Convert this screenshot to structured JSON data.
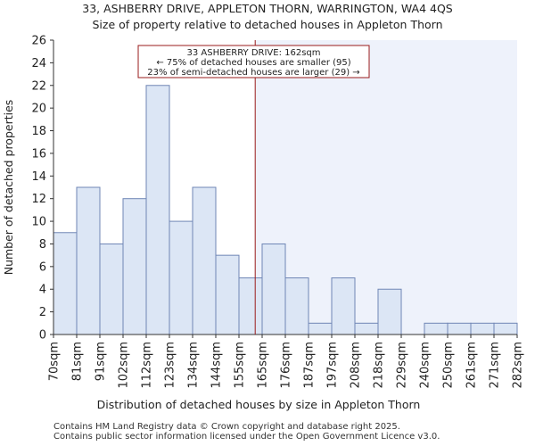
{
  "header": {
    "title_line1": "33, ASHBERRY DRIVE, APPLETON THORN, WARRINGTON, WA4 4QS",
    "title_line2": "Size of property relative to detached houses in Appleton Thorn"
  },
  "chart_data": {
    "type": "bar",
    "title": "Size of property relative to detached houses in Appleton Thorn",
    "xlabel": "Distribution of detached houses by size in Appleton Thorn",
    "ylabel": "Number of detached properties",
    "ylim": [
      0,
      26
    ],
    "yticks": [
      0,
      2,
      4,
      6,
      8,
      10,
      12,
      14,
      16,
      18,
      20,
      22,
      24,
      26
    ],
    "grid": false,
    "bin_edges": [
      "70sqm",
      "81sqm",
      "91sqm",
      "102sqm",
      "112sqm",
      "123sqm",
      "134sqm",
      "144sqm",
      "155sqm",
      "165sqm",
      "176sqm",
      "187sqm",
      "197sqm",
      "208sqm",
      "218sqm",
      "229sqm",
      "240sqm",
      "250sqm",
      "261sqm",
      "271sqm",
      "282sqm"
    ],
    "values": [
      9,
      13,
      8,
      12,
      22,
      10,
      13,
      7,
      5,
      8,
      5,
      1,
      5,
      1,
      4,
      0,
      1,
      1,
      1,
      1
    ],
    "marker": {
      "value_bin_position": 8.7,
      "label_line1": "33 ASHBERRY DRIVE: 162sqm",
      "label_line2": "← 75% of detached houses are smaller (95)",
      "label_line3": "23% of semi-detached houses are larger (29) →"
    },
    "colors": {
      "bar_fill": "#dce6f5",
      "bar_stroke": "#6f86b5",
      "marker_line": "#9a1b1b",
      "highlight_region": "#eef2fb"
    }
  },
  "footer": {
    "line1": "Contains HM Land Registry data © Crown copyright and database right 2025.",
    "line2": "Contains public sector information licensed under the Open Government Licence v3.0."
  }
}
